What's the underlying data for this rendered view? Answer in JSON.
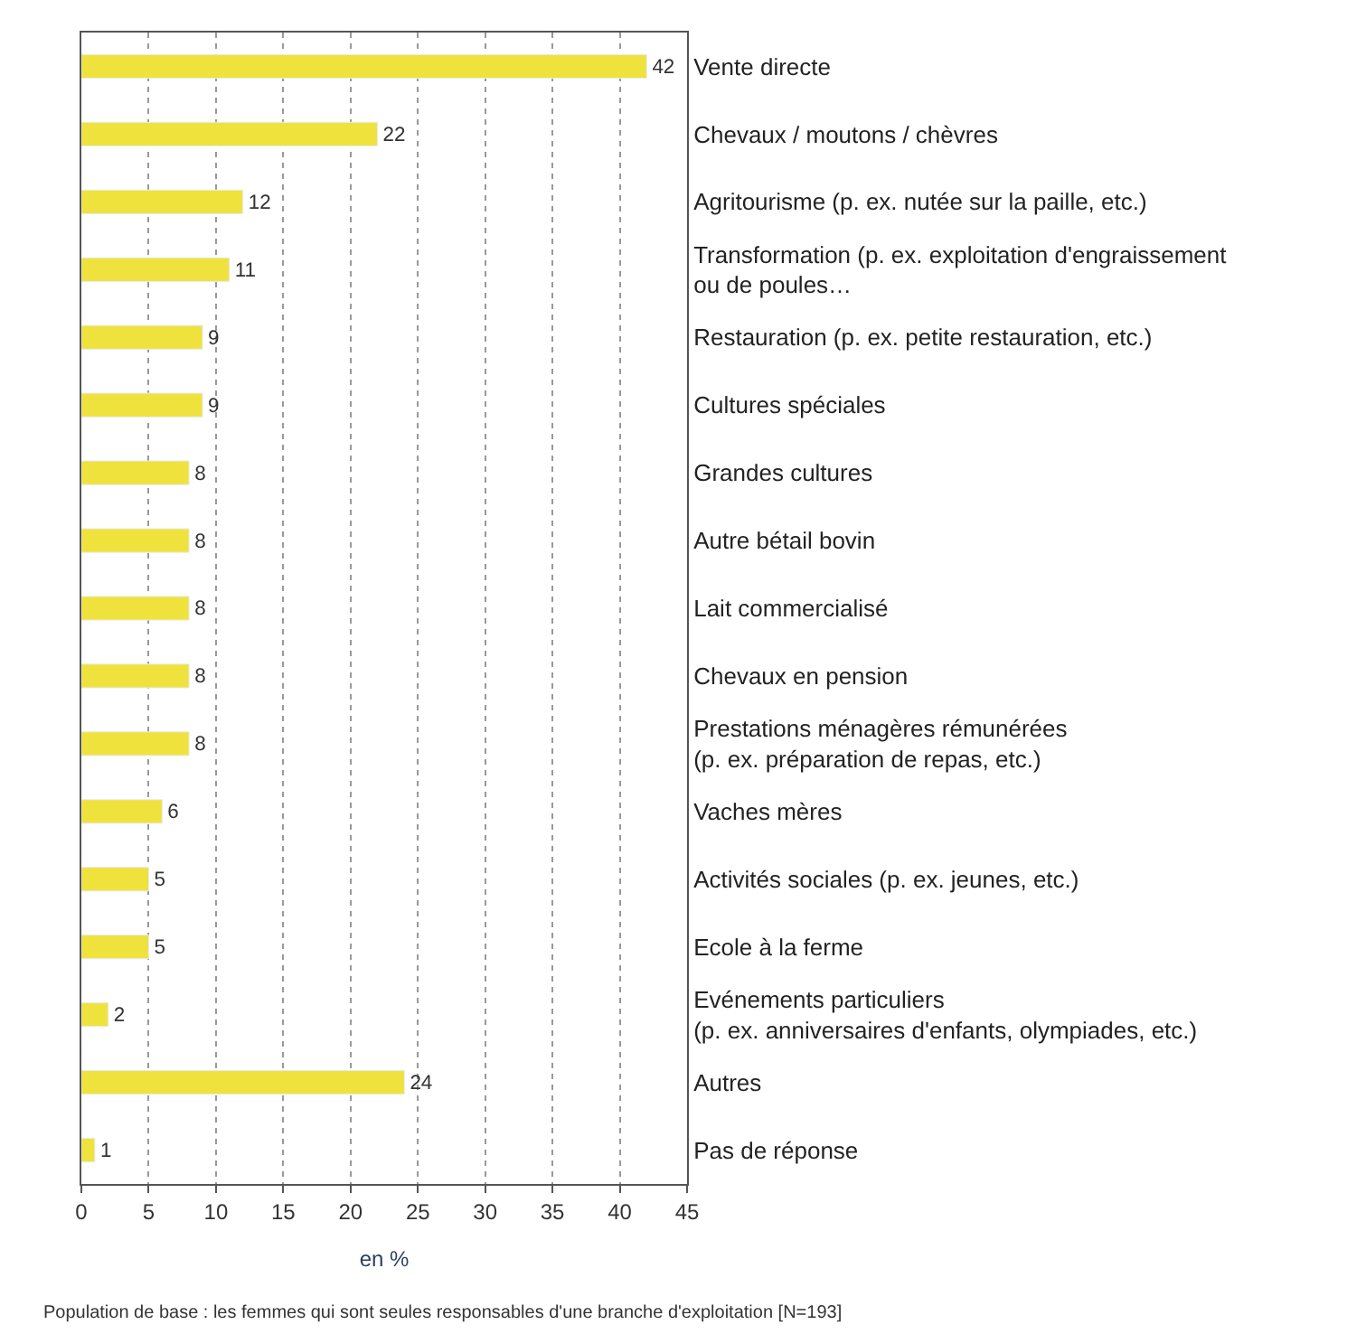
{
  "chart_data": {
    "type": "bar",
    "orientation": "horizontal",
    "categories": [
      "Vente directe",
      "Chevaux / moutons / chèvres",
      "Agritourisme (p. ex. nutée sur la paille, etc.)",
      "Transformation (p. ex. exploitation d'engraissement\nou de poules…",
      "Restauration (p. ex. petite restauration, etc.)",
      "Cultures spéciales",
      "Grandes cultures",
      "Autre bétail bovin",
      "Lait commercialisé",
      "Chevaux en pension",
      "Prestations ménagères rémunérées\n(p. ex. préparation de repas, etc.)",
      "Vaches mères",
      "Activités sociales (p. ex. jeunes, etc.)",
      "Ecole à la ferme",
      "Evénements particuliers\n(p. ex. anniversaires d'enfants, olympiades, etc.)",
      "Autres",
      "Pas de réponse"
    ],
    "values": [
      42,
      22,
      12,
      11,
      9,
      9,
      8,
      8,
      8,
      8,
      8,
      6,
      5,
      5,
      2,
      24,
      1
    ],
    "color": "#f0e23c",
    "data_labels": true,
    "xlim": [
      0,
      45
    ],
    "xticks": [
      0,
      5,
      10,
      15,
      20,
      25,
      30,
      35,
      40,
      45
    ],
    "xlabel": "en %",
    "grid": "x",
    "annotations": [
      "Population de base : les femmes qui sont seules responsables d'une branche d'exploitation [N=193]"
    ]
  }
}
